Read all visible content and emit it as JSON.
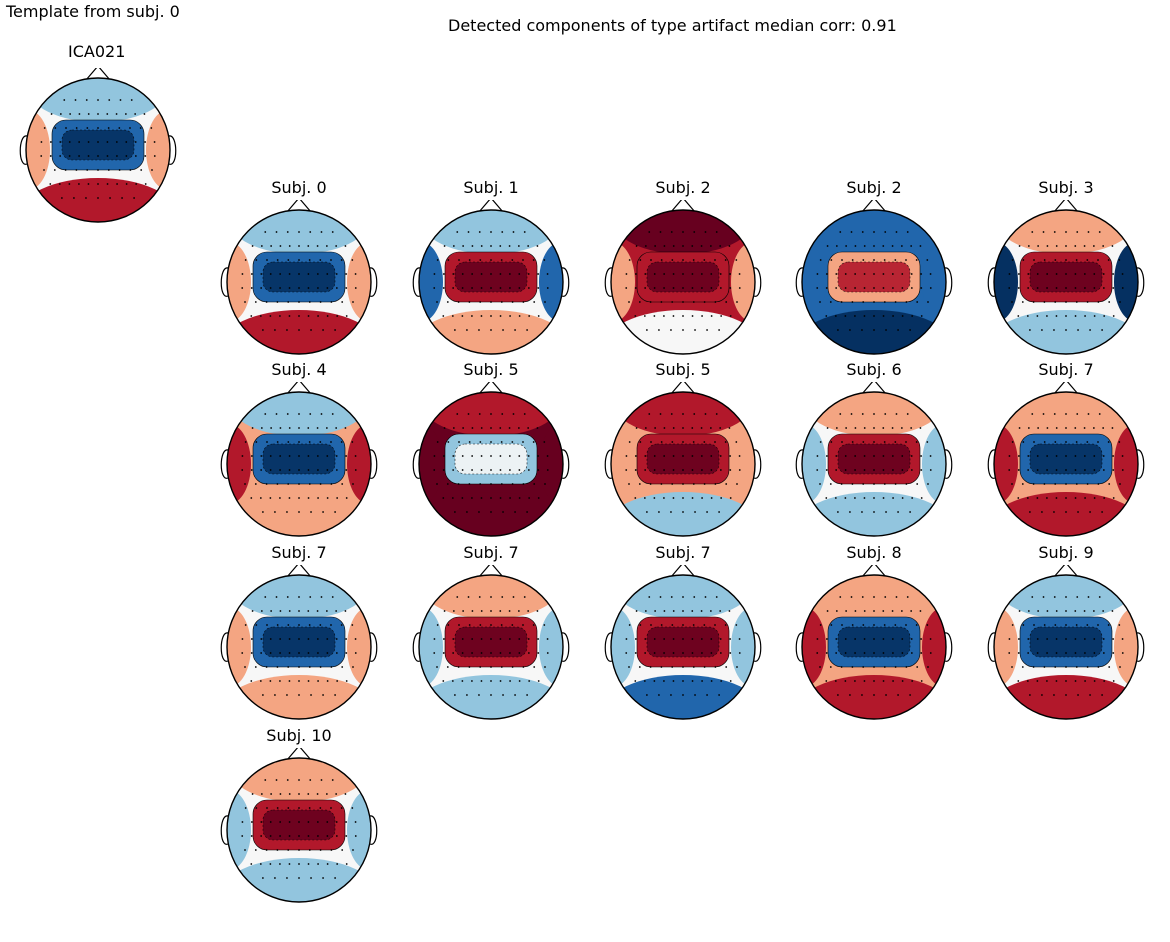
{
  "template_title": "Template from subj. 0",
  "main_title": "Detected components of type artifact median corr: 0.91",
  "template": {
    "label": "ICA021",
    "pattern": "blue_center_red_sides"
  },
  "grid": [
    {
      "label": "Subj. 0",
      "pattern": "blue_center_red_sides"
    },
    {
      "label": "Subj. 1",
      "pattern": "red_center_blue_sides"
    },
    {
      "label": "Subj. 2",
      "pattern": "red_all"
    },
    {
      "label": "Subj. 2",
      "pattern": "blue_all"
    },
    {
      "label": "Subj. 3",
      "pattern": "red_center_mixed"
    },
    {
      "label": "Subj. 4",
      "pattern": "blue_center_red_ring"
    },
    {
      "label": "Subj. 5",
      "pattern": "blue_center_dark_red"
    },
    {
      "label": "Subj. 5",
      "pattern": "red_center_light"
    },
    {
      "label": "Subj. 6",
      "pattern": "red_center_blue_back"
    },
    {
      "label": "Subj. 7",
      "pattern": "blue_center_red_back"
    },
    {
      "label": "Subj. 7",
      "pattern": "blue_center_red_back_soft"
    },
    {
      "label": "Subj. 7",
      "pattern": "red_center_light_blue"
    },
    {
      "label": "Subj. 7",
      "pattern": "red_center_blue_patch"
    },
    {
      "label": "Subj. 8",
      "pattern": "blue_center_red_back"
    },
    {
      "label": "Subj. 9",
      "pattern": "blue_center_red_spot"
    },
    {
      "label": "Subj. 10",
      "pattern": "red_center_blue_back"
    }
  ],
  "colors": {
    "dark_red": "#67001f",
    "red": "#b2182b",
    "light_red": "#f4a582",
    "white": "#f7f7f7",
    "light_blue": "#92c5de",
    "blue": "#2166ac",
    "dark_blue": "#053061"
  }
}
